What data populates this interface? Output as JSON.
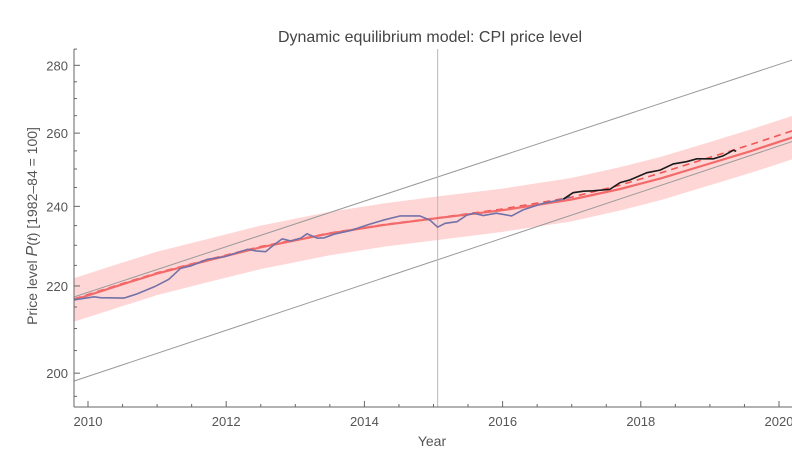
{
  "chart_data": {
    "type": "line",
    "title": "Dynamic equilibrium model: CPI price level",
    "xlabel": "Year",
    "ylabel": "Price level P(t) [1982–84 = 100]",
    "ylabel_parts": {
      "pre": "Price level ",
      "italic_p": "P",
      "open": "(",
      "italic_t": "t",
      "post": ") [1982–84 = 100]"
    },
    "xlim": [
      2009.8,
      2020.2
    ],
    "ylim": [
      192.8,
      285
    ],
    "yscale": "log",
    "grid": false,
    "x_ticks": [
      2010,
      2012,
      2014,
      2016,
      2018,
      2020
    ],
    "x_tick_labels": [
      "2010",
      "2012",
      "2014",
      "2016",
      "2018",
      "2020"
    ],
    "y_ticks": [
      200,
      220,
      240,
      260,
      280
    ],
    "y_tick_labels": [
      "200",
      "220",
      "240",
      "260",
      "280"
    ],
    "vertical_line_x": 2015.06,
    "colors": {
      "band": "#ffd6d6",
      "model": "#f26a6a",
      "model_dashed": "#f25555",
      "cpi_data": "#7272a8",
      "cpi_recent": "#1a1a1a",
      "reference_lines": "#9a9a9a",
      "axis": "#666666"
    },
    "reference_lines": [
      {
        "x": [
          2009.8,
          2020.19
        ],
        "y": [
          217.4,
          281.6
        ]
      },
      {
        "x": [
          2009.8,
          2020.19
        ],
        "y": [
          198.3,
          257.6
        ]
      }
    ],
    "model_x": [
      2009.8,
      2010.5,
      2011.0,
      2011.73,
      2012.5,
      2013.5,
      2014.3,
      2015.05,
      2016.0,
      2017.0,
      2017.7,
      2018.3,
      2019.0,
      2019.6,
      2020.2
    ],
    "model_solid": [
      216.7,
      220.4,
      223.0,
      226.2,
      229.5,
      233.0,
      235.2,
      236.9,
      239.0,
      241.8,
      244.6,
      247.5,
      251.5,
      255.0,
      258.8
    ],
    "model_dashed": [
      216.9,
      220.6,
      223.2,
      226.4,
      229.7,
      233.1,
      235.3,
      237.0,
      239.3,
      242.4,
      245.6,
      249.0,
      253.2,
      256.8,
      260.7
    ],
    "band_upper": [
      221.9,
      225.7,
      228.4,
      231.6,
      235.0,
      238.6,
      240.8,
      242.6,
      244.7,
      247.6,
      250.5,
      253.4,
      257.5,
      261.1,
      265.0
    ],
    "band_lower": [
      211.6,
      215.2,
      217.8,
      220.9,
      224.1,
      227.5,
      229.7,
      231.3,
      233.4,
      236.1,
      238.9,
      241.7,
      245.6,
      249.0,
      252.7
    ],
    "cpi_data": {
      "x": [
        2009.8,
        2010.09,
        2010.18,
        2010.52,
        2010.71,
        2010.96,
        2011.17,
        2011.34,
        2011.49,
        2011.73,
        2011.97,
        2012.31,
        2012.43,
        2012.57,
        2012.69,
        2012.81,
        2012.93,
        2013.08,
        2013.17,
        2013.32,
        2013.42,
        2013.56,
        2013.79,
        2014.08,
        2014.27,
        2014.52,
        2014.8,
        2014.95,
        2015.06,
        2015.17,
        2015.34,
        2015.48,
        2015.58,
        2015.72,
        2015.91,
        2016.13,
        2016.3,
        2016.59,
        2016.83,
        2016.98
      ],
      "y": [
        216.7,
        217.4,
        217.2,
        217.1,
        218.1,
        219.8,
        221.6,
        224.3,
        224.9,
        226.5,
        227.1,
        229.0,
        228.6,
        228.4,
        230.1,
        231.6,
        231.1,
        231.8,
        232.9,
        231.8,
        231.9,
        232.8,
        233.7,
        235.4,
        236.4,
        237.5,
        237.5,
        236.4,
        234.6,
        235.6,
        236.0,
        237.7,
        238.2,
        237.6,
        238.2,
        237.5,
        239.1,
        240.8,
        241.7,
        242.5
      ]
    },
    "cpi_recent": {
      "x": [
        2016.88,
        2017.02,
        2017.17,
        2017.31,
        2017.55,
        2017.7,
        2017.84,
        2018.09,
        2018.28,
        2018.47,
        2018.66,
        2018.81,
        2019.05,
        2019.19,
        2019.34,
        2019.38
      ],
      "y": [
        241.9,
        243.6,
        244.0,
        244.1,
        244.5,
        246.3,
        247.0,
        249.0,
        249.7,
        251.4,
        252.0,
        252.8,
        252.8,
        253.6,
        255.2,
        254.9
      ]
    }
  }
}
